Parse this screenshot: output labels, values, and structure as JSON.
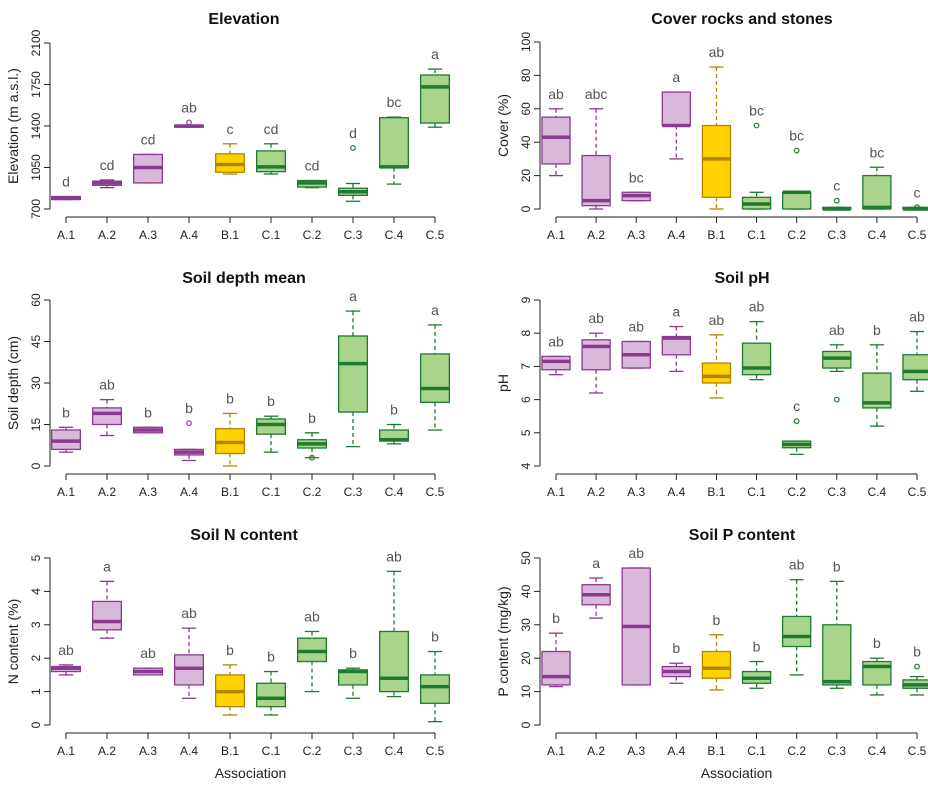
{
  "chart_data": [
    {
      "type": "box",
      "title": "Elevation",
      "ylabel": "Elevation (m a.s.l.)",
      "xlabel": "",
      "ylim": [
        700,
        2100
      ],
      "yticks": [
        "700",
        "1050",
        "1400",
        "1750",
        "2100"
      ],
      "categories": [
        "A.1",
        "A.2",
        "A.3",
        "A.4",
        "B.1",
        "C.1",
        "C.2",
        "C.3",
        "C.4",
        "C.5"
      ],
      "boxes": [
        {
          "min": 780,
          "q1": 780,
          "median": 790,
          "q3": 805,
          "max": 805,
          "outliers": [],
          "letter": "d"
        },
        {
          "min": 880,
          "q1": 900,
          "median": 920,
          "q3": 935,
          "max": 945,
          "outliers": [],
          "letter": "cd"
        },
        {
          "min": 920,
          "q1": 920,
          "median": 1050,
          "q3": 1160,
          "max": 1160,
          "outliers": [],
          "letter": "cd"
        },
        {
          "min": 1390,
          "q1": 1390,
          "median": 1400,
          "q3": 1405,
          "max": 1405,
          "outliers": [
            1430
          ],
          "letter": "ab"
        },
        {
          "min": 995,
          "q1": 1010,
          "median": 1075,
          "q3": 1165,
          "max": 1250,
          "outliers": [],
          "letter": "c"
        },
        {
          "min": 995,
          "q1": 1015,
          "median": 1055,
          "q3": 1190,
          "max": 1250,
          "outliers": [],
          "letter": "cd"
        },
        {
          "min": 880,
          "q1": 885,
          "median": 920,
          "q3": 940,
          "max": 940,
          "outliers": [],
          "letter": "cd"
        },
        {
          "min": 765,
          "q1": 815,
          "median": 845,
          "q3": 875,
          "max": 915,
          "outliers": [
            1215
          ],
          "letter": "d"
        },
        {
          "min": 910,
          "q1": 1050,
          "median": 1055,
          "q3": 1470,
          "max": 1475,
          "outliers": [],
          "letter": "bc"
        },
        {
          "min": 1390,
          "q1": 1425,
          "median": 1730,
          "q3": 1830,
          "max": 1880,
          "outliers": [],
          "letter": "a"
        }
      ]
    },
    {
      "type": "box",
      "title": "Cover rocks and stones",
      "ylabel": "Cover (%)",
      "xlabel": "",
      "ylim": [
        0,
        100
      ],
      "yticks": [
        "0",
        "20",
        "40",
        "60",
        "80",
        "100"
      ],
      "categories": [
        "A.1",
        "A.2",
        "A.3",
        "A.4",
        "B.1",
        "C.1",
        "C.2",
        "C.3",
        "C.4",
        "C.5"
      ],
      "boxes": [
        {
          "min": 20,
          "q1": 27,
          "median": 43,
          "q3": 55,
          "max": 60,
          "outliers": [],
          "letter": "ab"
        },
        {
          "min": 0,
          "q1": 2,
          "median": 5,
          "q3": 32,
          "max": 60,
          "outliers": [],
          "letter": "abc"
        },
        {
          "min": 5,
          "q1": 5,
          "median": 8,
          "q3": 10,
          "max": 10,
          "outliers": [],
          "letter": "bc"
        },
        {
          "min": 30,
          "q1": 50,
          "median": 50,
          "q3": 70,
          "max": 70,
          "outliers": [],
          "letter": "a"
        },
        {
          "min": 0,
          "q1": 7,
          "median": 30,
          "q3": 50,
          "max": 85,
          "outliers": [],
          "letter": "ab"
        },
        {
          "min": 0,
          "q1": 0,
          "median": 3,
          "q3": 7,
          "max": 10,
          "outliers": [
            50
          ],
          "letter": "bc"
        },
        {
          "min": 0,
          "q1": 0,
          "median": 10,
          "q3": 10,
          "max": 10,
          "outliers": [
            35
          ],
          "letter": "bc"
        },
        {
          "min": 0,
          "q1": 0,
          "median": 0,
          "q3": 1,
          "max": 1,
          "outliers": [
            5
          ],
          "letter": "c"
        },
        {
          "min": 0,
          "q1": 0,
          "median": 1,
          "q3": 20,
          "max": 25,
          "outliers": [],
          "letter": "bc"
        },
        {
          "min": 0,
          "q1": 0,
          "median": 0,
          "q3": 1,
          "max": 1,
          "outliers": [
            1
          ],
          "letter": "c"
        }
      ]
    },
    {
      "type": "box",
      "title": "Soil depth mean",
      "ylabel": "Soil depth (cm)",
      "xlabel": "",
      "ylim": [
        0,
        60
      ],
      "yticks": [
        "0",
        "15",
        "30",
        "45",
        "60"
      ],
      "categories": [
        "A.1",
        "A.2",
        "A.3",
        "A.4",
        "B.1",
        "C.1",
        "C.2",
        "C.3",
        "C.4",
        "C.5"
      ],
      "boxes": [
        {
          "min": 5,
          "q1": 6,
          "median": 9,
          "q3": 13,
          "max": 14,
          "outliers": [],
          "letter": "b"
        },
        {
          "min": 11,
          "q1": 15,
          "median": 19,
          "q3": 21,
          "max": 24,
          "outliers": [],
          "letter": "ab"
        },
        {
          "min": 12,
          "q1": 12,
          "median": 13,
          "q3": 14,
          "max": 14,
          "outliers": [],
          "letter": "b"
        },
        {
          "min": 2,
          "q1": 4,
          "median": 5,
          "q3": 6,
          "max": 6,
          "outliers": [
            15.5
          ],
          "letter": "b"
        },
        {
          "min": 0,
          "q1": 4.5,
          "median": 8.5,
          "q3": 13.5,
          "max": 19,
          "outliers": [],
          "letter": "b"
        },
        {
          "min": 5,
          "q1": 11.5,
          "median": 15,
          "q3": 17,
          "max": 18,
          "outliers": [],
          "letter": "b"
        },
        {
          "min": 3,
          "q1": 6.5,
          "median": 8,
          "q3": 9.5,
          "max": 12,
          "outliers": [
            3
          ],
          "letter": "b"
        },
        {
          "min": 7,
          "q1": 19.5,
          "median": 37,
          "q3": 47,
          "max": 56,
          "outliers": [],
          "letter": "a"
        },
        {
          "min": 8,
          "q1": 9,
          "median": 9.5,
          "q3": 13,
          "max": 15,
          "outliers": [],
          "letter": "b"
        },
        {
          "min": 13,
          "q1": 23,
          "median": 28,
          "q3": 40.5,
          "max": 51,
          "outliers": [],
          "letter": "a"
        }
      ]
    },
    {
      "type": "box",
      "title": "Soil pH",
      "ylabel": "pH",
      "xlabel": "",
      "ylim": [
        4,
        9
      ],
      "yticks": [
        "4",
        "5",
        "6",
        "7",
        "8",
        "9"
      ],
      "categories": [
        "A.1",
        "A.2",
        "A.3",
        "A.4",
        "B.1",
        "C.1",
        "C.2",
        "C.3",
        "C.4",
        "C.5"
      ],
      "boxes": [
        {
          "min": 6.75,
          "q1": 6.9,
          "median": 7.15,
          "q3": 7.3,
          "max": 7.3,
          "outliers": [],
          "letter": "ab"
        },
        {
          "min": 6.2,
          "q1": 6.9,
          "median": 7.6,
          "q3": 7.8,
          "max": 8.0,
          "outliers": [],
          "letter": "ab"
        },
        {
          "min": 6.95,
          "q1": 6.95,
          "median": 7.35,
          "q3": 7.75,
          "max": 7.75,
          "outliers": [],
          "letter": "ab"
        },
        {
          "min": 6.85,
          "q1": 7.35,
          "median": 7.85,
          "q3": 7.9,
          "max": 8.2,
          "outliers": [],
          "letter": "a"
        },
        {
          "min": 6.05,
          "q1": 6.5,
          "median": 6.7,
          "q3": 7.1,
          "max": 7.95,
          "outliers": [],
          "letter": "ab"
        },
        {
          "min": 6.6,
          "q1": 6.75,
          "median": 6.95,
          "q3": 7.7,
          "max": 8.35,
          "outliers": [],
          "letter": "ab"
        },
        {
          "min": 4.35,
          "q1": 4.55,
          "median": 4.65,
          "q3": 4.75,
          "max": 4.75,
          "outliers": [
            5.35
          ],
          "letter": "c"
        },
        {
          "min": 6.85,
          "q1": 6.95,
          "median": 7.25,
          "q3": 7.45,
          "max": 7.65,
          "outliers": [
            6.0
          ],
          "letter": "ab"
        },
        {
          "min": 5.2,
          "q1": 5.75,
          "median": 5.9,
          "q3": 6.8,
          "max": 7.65,
          "outliers": [],
          "letter": "b"
        },
        {
          "min": 6.25,
          "q1": 6.6,
          "median": 6.85,
          "q3": 7.35,
          "max": 8.05,
          "outliers": [],
          "letter": "ab"
        }
      ]
    },
    {
      "type": "box",
      "title": "Soil N content",
      "ylabel": "N content (%)",
      "xlabel": "Association",
      "ylim": [
        0,
        5
      ],
      "yticks": [
        "0",
        "1",
        "2",
        "3",
        "4",
        "5"
      ],
      "categories": [
        "A.1",
        "A.2",
        "A.3",
        "A.4",
        "B.1",
        "C.1",
        "C.2",
        "C.3",
        "C.4",
        "C.5"
      ],
      "boxes": [
        {
          "min": 1.5,
          "q1": 1.6,
          "median": 1.7,
          "q3": 1.75,
          "max": 1.8,
          "outliers": [],
          "letter": "ab"
        },
        {
          "min": 2.6,
          "q1": 2.85,
          "median": 3.1,
          "q3": 3.7,
          "max": 4.3,
          "outliers": [],
          "letter": "a"
        },
        {
          "min": 1.5,
          "q1": 1.5,
          "median": 1.6,
          "q3": 1.7,
          "max": 1.7,
          "outliers": [],
          "letter": "ab"
        },
        {
          "min": 0.8,
          "q1": 1.2,
          "median": 1.7,
          "q3": 2.1,
          "max": 2.9,
          "outliers": [],
          "letter": "ab"
        },
        {
          "min": 0.3,
          "q1": 0.55,
          "median": 1.0,
          "q3": 1.5,
          "max": 1.8,
          "outliers": [],
          "letter": "b"
        },
        {
          "min": 0.3,
          "q1": 0.55,
          "median": 0.8,
          "q3": 1.25,
          "max": 1.6,
          "outliers": [],
          "letter": "b"
        },
        {
          "min": 1.0,
          "q1": 1.9,
          "median": 2.2,
          "q3": 2.6,
          "max": 2.8,
          "outliers": [],
          "letter": "ab"
        },
        {
          "min": 0.8,
          "q1": 1.2,
          "median": 1.6,
          "q3": 1.65,
          "max": 1.7,
          "outliers": [],
          "letter": "b"
        },
        {
          "min": 0.85,
          "q1": 1.0,
          "median": 1.4,
          "q3": 2.8,
          "max": 4.6,
          "outliers": [],
          "letter": "ab"
        },
        {
          "min": 0.1,
          "q1": 0.65,
          "median": 1.15,
          "q3": 1.5,
          "max": 2.2,
          "outliers": [],
          "letter": "b"
        }
      ]
    },
    {
      "type": "box",
      "title": "Soil P content",
      "ylabel": "P content (mg/kg)",
      "xlabel": "Association",
      "ylim": [
        0,
        50
      ],
      "yticks": [
        "0",
        "10",
        "20",
        "30",
        "40",
        "50"
      ],
      "categories": [
        "A.1",
        "A.2",
        "A.3",
        "A.4",
        "B.1",
        "C.1",
        "C.2",
        "C.3",
        "C.4",
        "C.5"
      ],
      "boxes": [
        {
          "min": 11.5,
          "q1": 12,
          "median": 14.5,
          "q3": 22,
          "max": 27.5,
          "outliers": [],
          "letter": "b"
        },
        {
          "min": 32,
          "q1": 36,
          "median": 39,
          "q3": 42,
          "max": 44,
          "outliers": [],
          "letter": "a"
        },
        {
          "min": 12,
          "q1": 12,
          "median": 29.5,
          "q3": 47,
          "max": 47,
          "outliers": [],
          "letter": "ab"
        },
        {
          "min": 12.5,
          "q1": 14.5,
          "median": 16,
          "q3": 17.5,
          "max": 18.5,
          "outliers": [],
          "letter": "b"
        },
        {
          "min": 10.5,
          "q1": 14,
          "median": 17,
          "q3": 22,
          "max": 27,
          "outliers": [],
          "letter": "b"
        },
        {
          "min": 11,
          "q1": 12.5,
          "median": 14,
          "q3": 16,
          "max": 19,
          "outliers": [],
          "letter": "b"
        },
        {
          "min": 15,
          "q1": 23.5,
          "median": 26.5,
          "q3": 32.5,
          "max": 43.5,
          "outliers": [],
          "letter": "ab"
        },
        {
          "min": 11,
          "q1": 12,
          "median": 13,
          "q3": 30,
          "max": 43,
          "outliers": [],
          "letter": "b"
        },
        {
          "min": 9,
          "q1": 12,
          "median": 17.5,
          "q3": 19,
          "max": 20,
          "outliers": [],
          "letter": "b"
        },
        {
          "min": 9,
          "q1": 11,
          "median": 12,
          "q3": 13.5,
          "max": 14.5,
          "outliers": [
            17.5
          ],
          "letter": "b"
        }
      ]
    }
  ],
  "colors": {
    "A_fill": "#d9b8dc",
    "A_edge": "#8b3b8f",
    "B_fill": "#ffd200",
    "B_edge": "#b08600",
    "C_fill": "#a9d48c",
    "C_edge": "#1f7a32",
    "letter": "#555555",
    "axis": "#222222"
  }
}
